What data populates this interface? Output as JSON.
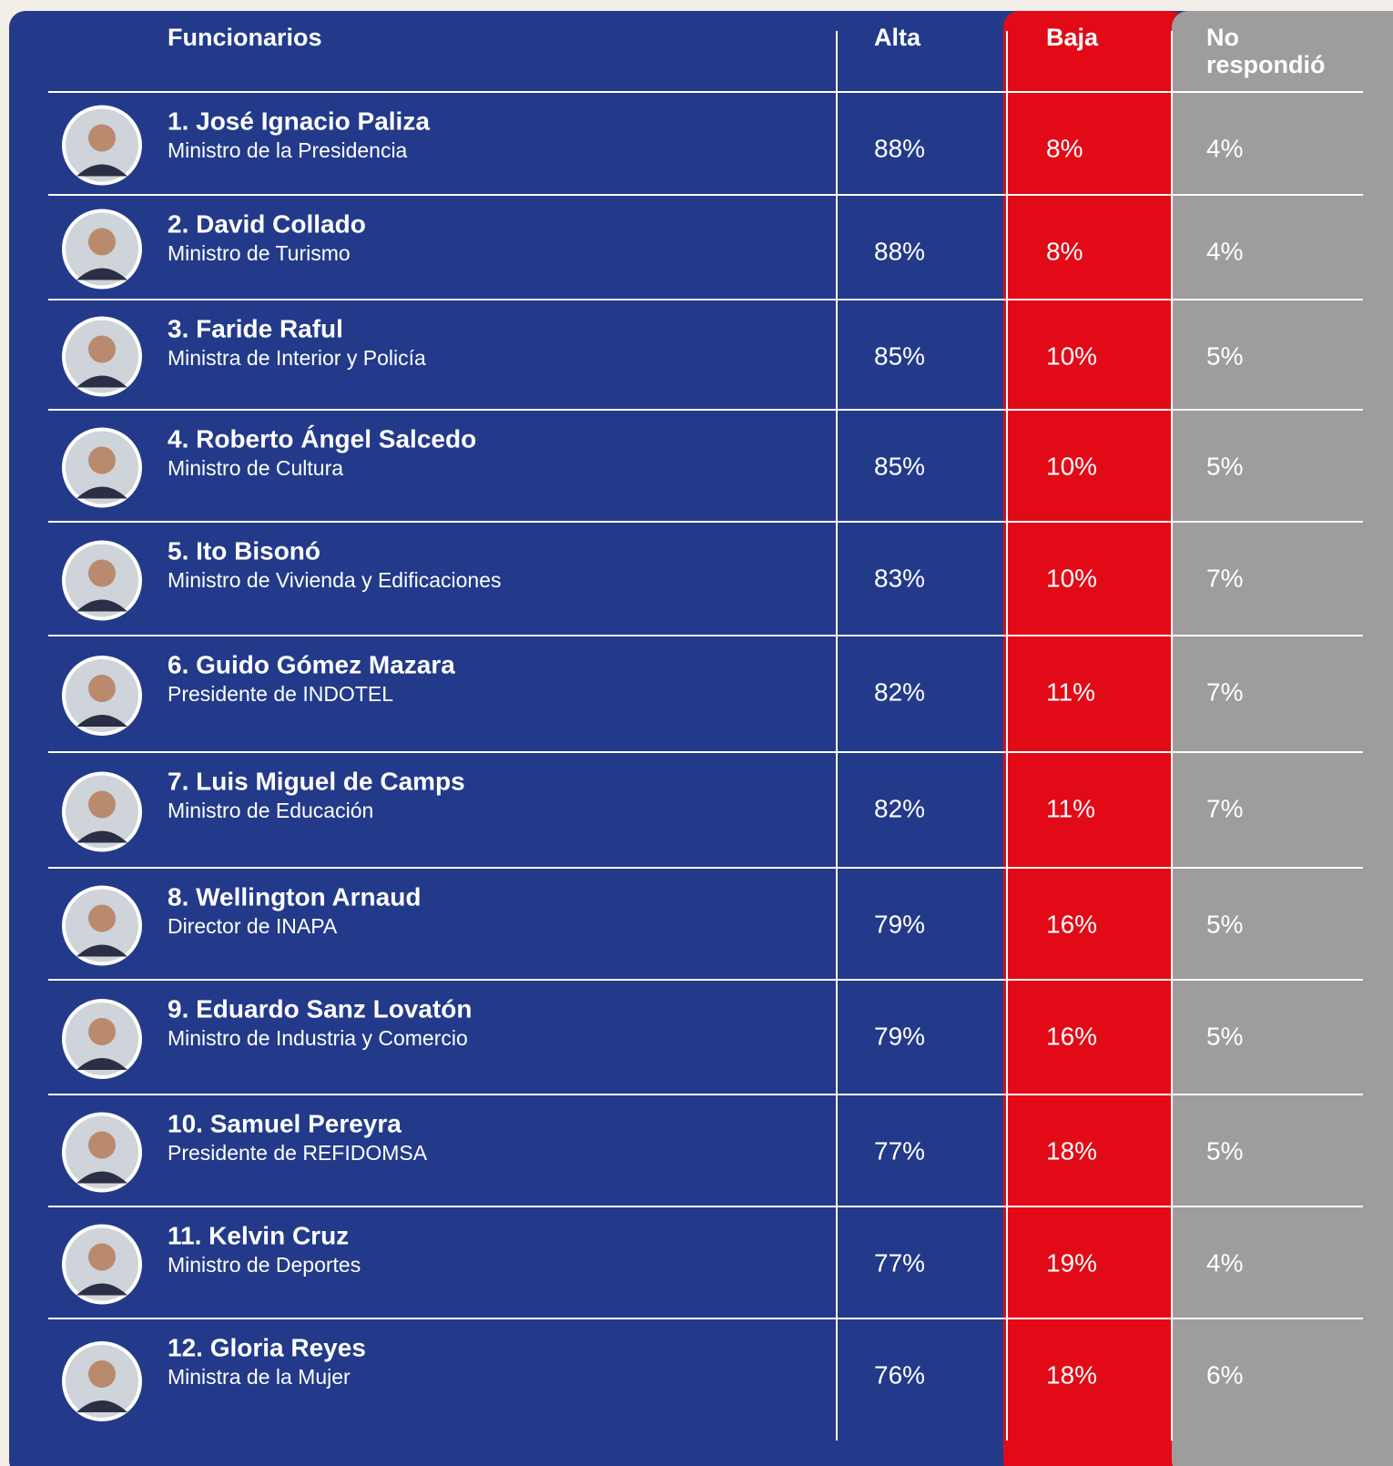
{
  "table": {
    "header": [
      "Funcionarios",
      "Alta",
      "Baja",
      "No respondió"
    ],
    "rows": [
      [
        "1. José Ignacio Paliza",
        "Ministro de la Presidencia",
        "88%",
        "8%",
        "4%"
      ],
      [
        "2. David Collado",
        "Ministro de Turismo",
        "88%",
        "8%",
        "4%"
      ],
      [
        "3. Faride Raful",
        "Ministra de Interior y Policía",
        "85%",
        "10%",
        "5%"
      ],
      [
        "4. Roberto Ángel Salcedo",
        "Ministro de Cultura",
        "85%",
        "10%",
        "5%"
      ],
      [
        "5. Ito Bisonó",
        "Ministro de Vivienda y Edificaciones",
        "83%",
        "10%",
        "7%"
      ],
      [
        "6. Guido Gómez Mazara",
        "Presidente de INDOTEL",
        "82%",
        "11%",
        "7%"
      ],
      [
        "7. Luis Miguel de Camps",
        "Ministro de Educación",
        "82%",
        "11%",
        "7%"
      ],
      [
        "8. Wellington Arnaud",
        "Director de INAPA",
        "79%",
        "16%",
        "5%"
      ],
      [
        "9. Eduardo Sanz Lovatón",
        "Ministro de Industria y Comercio",
        "79%",
        "16%",
        "5%"
      ],
      [
        "10. Samuel Pereyra",
        "Presidente de REFIDOMSA",
        "77%",
        "18%",
        "5%"
      ],
      [
        "11. Kelvin Cruz",
        "Ministro de Deportes",
        "77%",
        "19%",
        "4%"
      ],
      [
        "12. Gloria Reyes",
        "Ministra de la Mujer",
        "76%",
        "18%",
        "6%"
      ]
    ]
  }
}
